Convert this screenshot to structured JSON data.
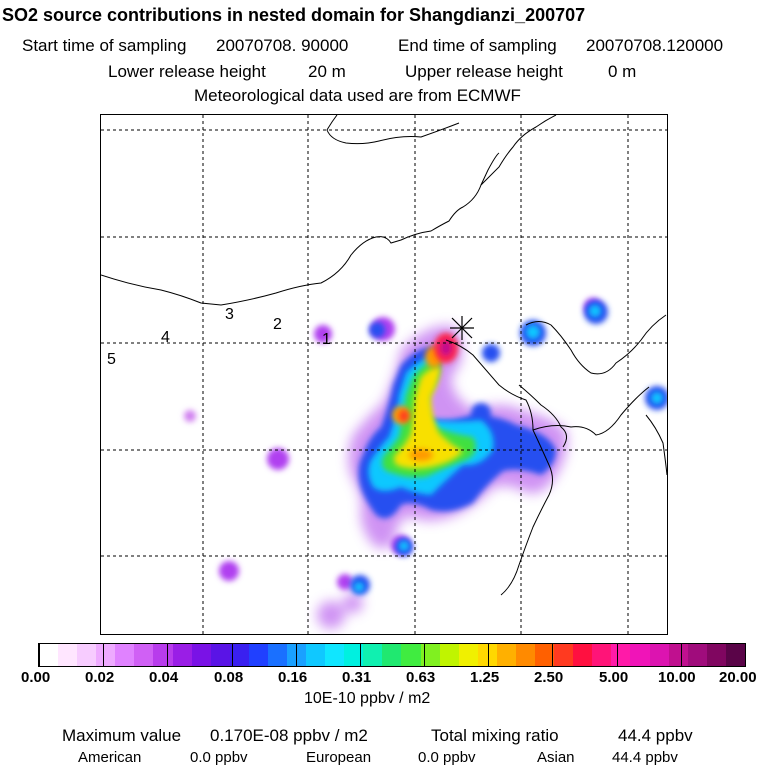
{
  "header": {
    "title": "SO2 source contributions in nested domain for Shangdianzi_200707",
    "start_label": "Start time of sampling",
    "start_value": "20070708. 90000",
    "end_label": "End time of sampling",
    "end_value": "20070708.120000",
    "lower_label": "Lower release height",
    "lower_value": "20 m",
    "upper_label": "Upper release height",
    "upper_value": "0 m",
    "met_line": "Meteorological data used are from ECMWF"
  },
  "map": {
    "trajectory_labels": [
      "1",
      "2",
      "3",
      "4",
      "5"
    ],
    "colors": {
      "coastline": "#000000",
      "grid": "#000000",
      "receptor_marker": "#000000"
    }
  },
  "colorbar": {
    "tick_labels": [
      "0.00",
      "0.02",
      "0.04",
      "0.08",
      "0.16",
      "0.31",
      "0.63",
      "1.25",
      "2.50",
      "5.00",
      "10.00",
      "20.00"
    ],
    "colors": [
      "#ffffff",
      "#ffe6ff",
      "#f7ccff",
      "#eeaaff",
      "#e082ff",
      "#d060f5",
      "#b83cec",
      "#9a1ee6",
      "#7a12e6",
      "#5a14e6",
      "#3a20f0",
      "#2040ff",
      "#1a70ff",
      "#1aa0ff",
      "#10c8ff",
      "#10e6ff",
      "#00f0e0",
      "#10f0b0",
      "#20e870",
      "#40ec40",
      "#80f020",
      "#c0f400",
      "#f0f000",
      "#ffd800",
      "#ffb000",
      "#ff8a00",
      "#ff6000",
      "#ff3a20",
      "#ff1040",
      "#ff1478",
      "#ff1aa8",
      "#f014b8",
      "#dc14b0",
      "#c0108f",
      "#a00c7c",
      "#800660",
      "#5a0448"
    ],
    "units": "10E-10 ppbv / m2"
  },
  "footer": {
    "max_label": "Maximum value",
    "max_value": "0.170E-08 ppbv / m2",
    "total_label": "Total mixing ratio",
    "total_value": "44.4 ppbv",
    "american_label": "American",
    "american_value": "0.0 ppbv",
    "european_label": "European",
    "european_value": "0.0 ppbv",
    "asian_label": "Asian",
    "asian_value": "44.4 ppbv"
  }
}
